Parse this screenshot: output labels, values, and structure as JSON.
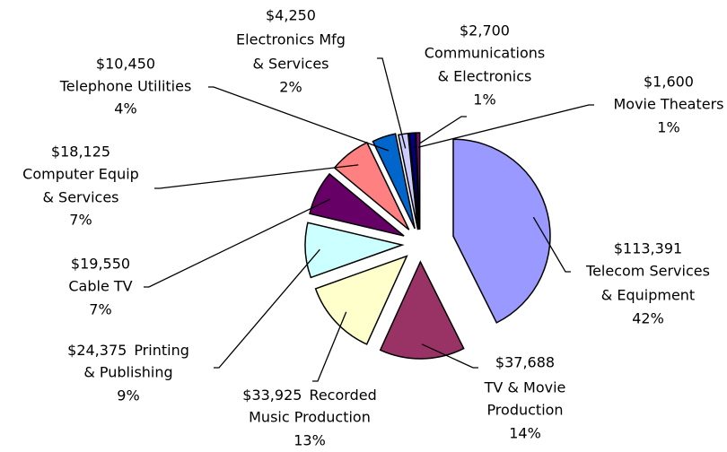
{
  "chart_data": {
    "type": "pie",
    "categories": [
      [
        "Telecom Services",
        "& Equipment"
      ],
      [
        "TV & Movie",
        "Production"
      ],
      [
        "Recorded",
        "Music Production"
      ],
      [
        "Printing",
        "& Publishing"
      ],
      [
        "Cable TV"
      ],
      [
        "Computer Equip",
        "& Services"
      ],
      [
        "Telephone Utilities"
      ],
      [
        "Electronics Mfg",
        "& Services"
      ],
      [
        "Communications",
        "& Electronics"
      ],
      [
        "Movie Theaters"
      ]
    ],
    "values": [
      113391,
      37688,
      33925,
      24375,
      19550,
      18125,
      10450,
      4250,
      2700,
      1600
    ],
    "value_labels": [
      "$113,391",
      "$37,688",
      "$33,925",
      "$24,375",
      "$19,550",
      "$18,125",
      "$10,450",
      "$4,250",
      "$2,700",
      "$1,600"
    ],
    "percents": [
      42,
      14,
      13,
      9,
      7,
      7,
      4,
      2,
      1,
      1
    ],
    "percent_labels": [
      "42%",
      "14%",
      "13%",
      "9%",
      "7%",
      "7%",
      "4%",
      "2%",
      "1%",
      "1%"
    ],
    "colors": [
      "#9999ff",
      "#993366",
      "#ffffcc",
      "#ccffff",
      "#660066",
      "#ff8080",
      "#0066cc",
      "#ccccff",
      "#000080",
      "#800080"
    ]
  }
}
